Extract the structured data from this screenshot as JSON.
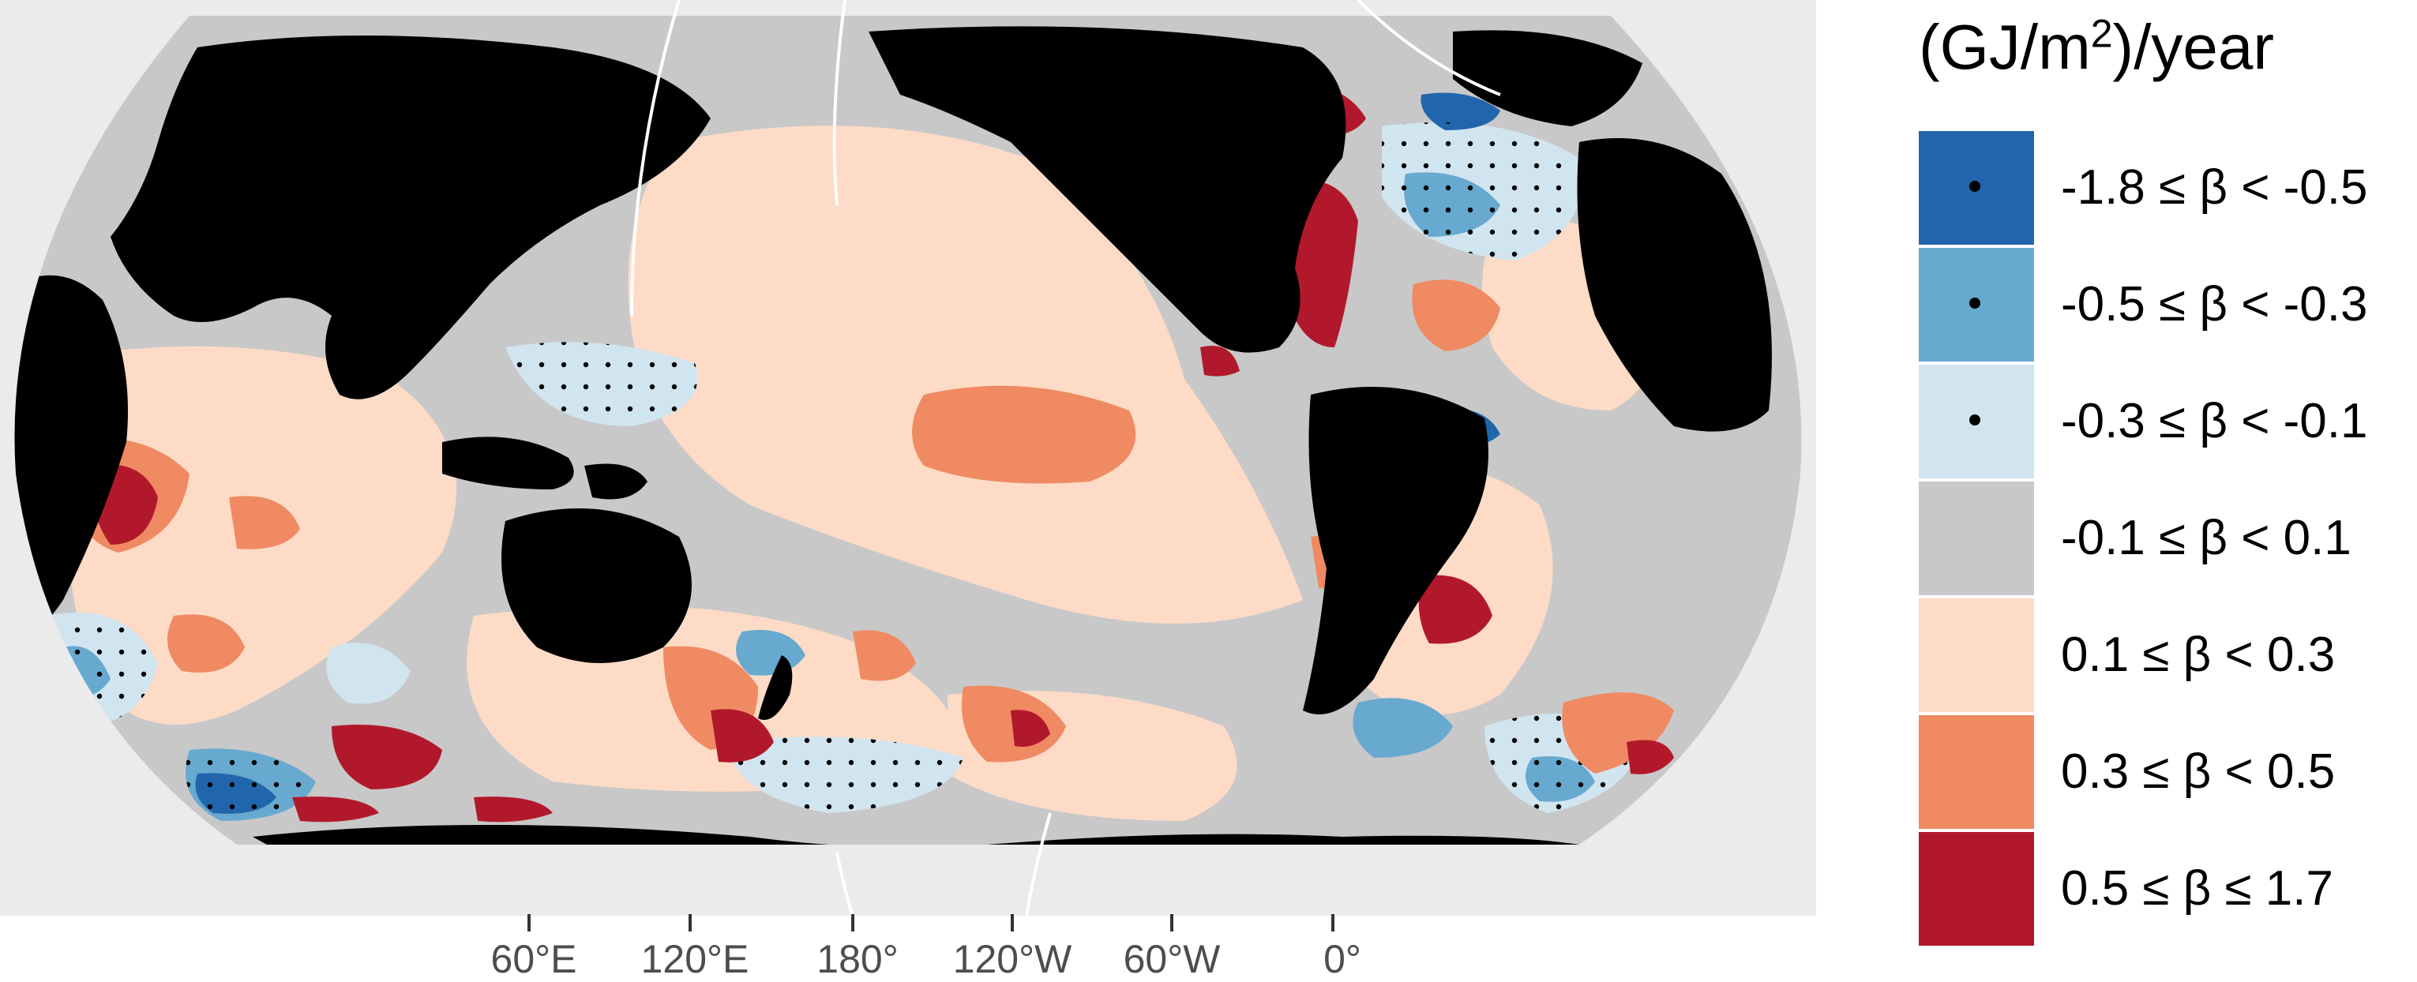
{
  "legend": {
    "title_prefix": "(GJ/m",
    "title_sup": "2",
    "title_suffix": ")/year",
    "entries": [
      {
        "label": "-1.8 ≤ β < -0.5",
        "color": "#2166ac",
        "stippled": true
      },
      {
        "label": "-0.5 ≤ β < -0.3",
        "color": "#67a9cf",
        "stippled": true
      },
      {
        "label": "-0.3 ≤ β < -0.1",
        "color": "#d1e5f0",
        "stippled": true
      },
      {
        "label": "-0.1 ≤ β < 0.1",
        "color": "#c8c8c8",
        "stippled": false
      },
      {
        "label": "0.1 ≤ β < 0.3",
        "color": "#fddbc7",
        "stippled": false
      },
      {
        "label": "0.3 ≤ β < 0.5",
        "color": "#ef8a62",
        "stippled": false
      },
      {
        "label": "0.5 ≤ β ≤ 1.7",
        "color": "#b2182b",
        "stippled": false
      }
    ]
  },
  "x_axis": {
    "ticks": [
      "60°E",
      "120°E",
      "180°",
      "120°W",
      "60°W",
      "0°"
    ]
  },
  "colors": {
    "background_panel": "#ebebeb",
    "land": "#000000",
    "grid": "#ffffff"
  }
}
